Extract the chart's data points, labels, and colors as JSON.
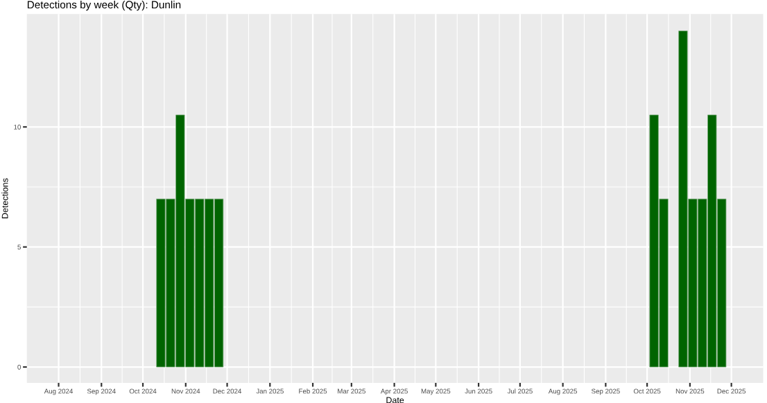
{
  "chart_data": {
    "type": "bar",
    "title": "Detections by week (Qty): Dunlin",
    "xlabel": "Date",
    "ylabel": "Detections",
    "x": [
      "2024-10-14",
      "2024-10-21",
      "2024-10-28",
      "2024-11-04",
      "2024-11-11",
      "2024-11-18",
      "2024-11-25",
      "2025-10-06",
      "2025-10-13",
      "2025-10-27",
      "2025-11-03",
      "2025-11-10",
      "2025-11-17",
      "2025-11-24"
    ],
    "values": [
      7,
      7,
      10.5,
      7,
      7,
      7,
      7,
      10.5,
      7,
      14,
      7,
      7,
      10.5,
      7
    ],
    "color": "#006400",
    "xlim": [
      "2024-07-09",
      "2025-12-24"
    ],
    "xticks": [
      {
        "value": "2024-08-01",
        "label": "Aug 2024"
      },
      {
        "value": "2024-09-01",
        "label": "Sep 2024"
      },
      {
        "value": "2024-10-01",
        "label": "Oct 2024"
      },
      {
        "value": "2024-11-01",
        "label": "Nov 2024"
      },
      {
        "value": "2024-12-01",
        "label": "Dec 2024"
      },
      {
        "value": "2025-01-01",
        "label": "Jan 2025"
      },
      {
        "value": "2025-02-01",
        "label": "Feb 2025"
      },
      {
        "value": "2025-03-01",
        "label": "Mar 2025"
      },
      {
        "value": "2025-04-01",
        "label": "Apr 2025"
      },
      {
        "value": "2025-05-01",
        "label": "May 2025"
      },
      {
        "value": "2025-06-01",
        "label": "Jun 2025"
      },
      {
        "value": "2025-07-01",
        "label": "Jul 2025"
      },
      {
        "value": "2025-08-01",
        "label": "Aug 2025"
      },
      {
        "value": "2025-09-01",
        "label": "Sep 2025"
      },
      {
        "value": "2025-10-01",
        "label": "Oct 2025"
      },
      {
        "value": "2025-11-01",
        "label": "Nov 2025"
      },
      {
        "value": "2025-12-01",
        "label": "Dec 2025"
      }
    ],
    "ylim": [
      -0.66,
      14.7
    ],
    "yticks": [
      0,
      5,
      10
    ],
    "grid": true
  }
}
